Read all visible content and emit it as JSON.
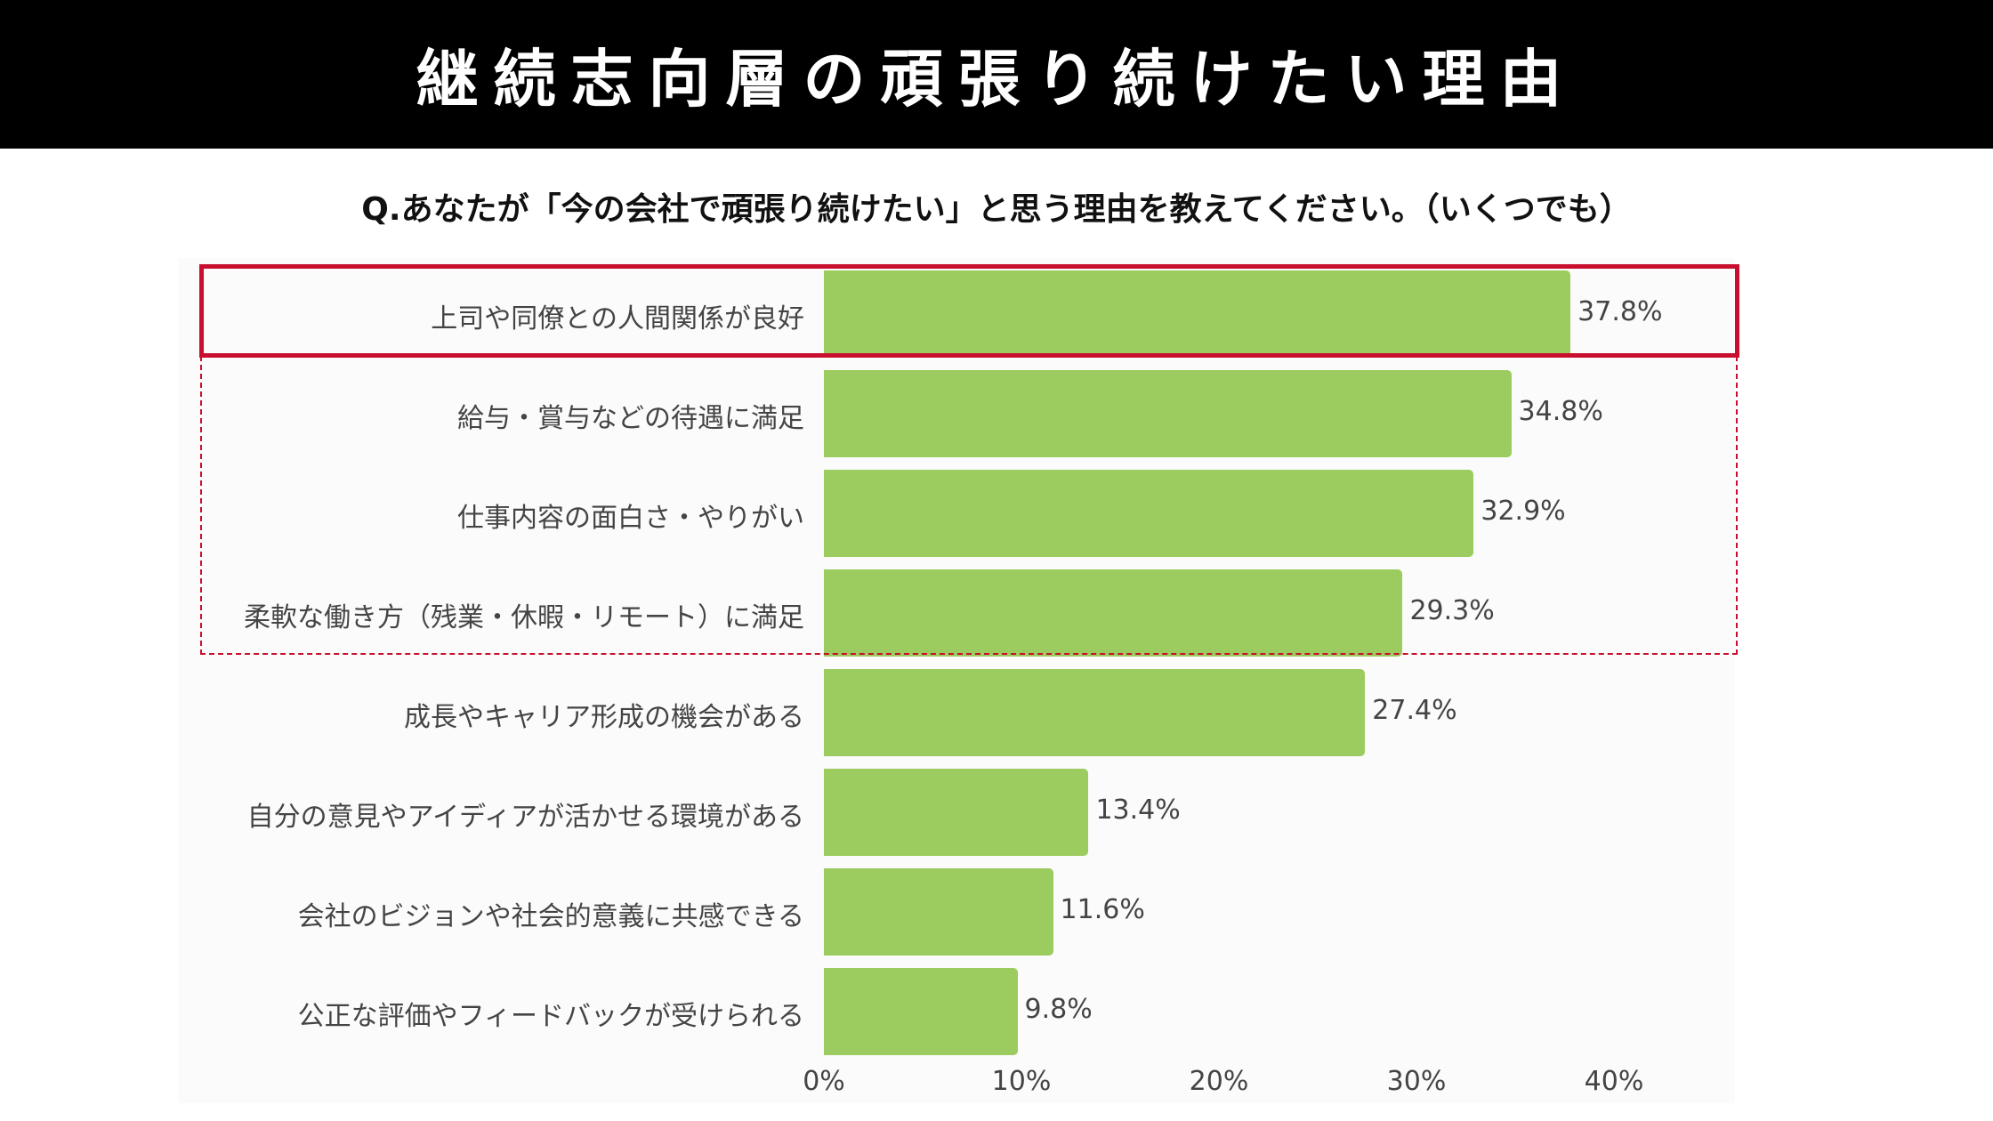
{
  "header": {
    "title": "継続志向層の頑張り続けたい理由"
  },
  "question": "Q.あなたが「今の会社で頑張り続けたい」と思う理由を教えてください。（いくつでも）",
  "colors": {
    "bar": "#9ccc5f",
    "highlight": "#c8102e",
    "header_bg": "#000000"
  },
  "chart_data": {
    "type": "bar",
    "orientation": "horizontal",
    "title": "継続志向層の頑張り続けたい理由",
    "categories": [
      "上司や同僚との人間関係が良好",
      "給与・賞与などの待遇に満足",
      "仕事内容の面白さ・やりがい",
      "柔軟な働き方（残業・休暇・リモート）に満足",
      "成長やキャリア形成の機会がある",
      "自分の意見やアイディアが活かせる環境がある",
      "会社のビジョンや社会的意義に共感できる",
      "公正な評価やフィードバックが受けられる"
    ],
    "values": [
      37.8,
      34.8,
      32.9,
      29.3,
      27.4,
      13.4,
      11.6,
      9.8
    ],
    "value_labels": [
      "37.8%",
      "34.8%",
      "32.9%",
      "29.3%",
      "27.4%",
      "13.4%",
      "11.6%",
      "9.8%"
    ],
    "xlim": [
      0,
      40
    ],
    "xticks": [
      "0%",
      "10%",
      "20%",
      "30%",
      "40%"
    ],
    "xlabel": "",
    "ylabel": "",
    "grid": false,
    "highlight_solid": [
      0
    ],
    "highlight_dashed": [
      1,
      2,
      3
    ]
  }
}
